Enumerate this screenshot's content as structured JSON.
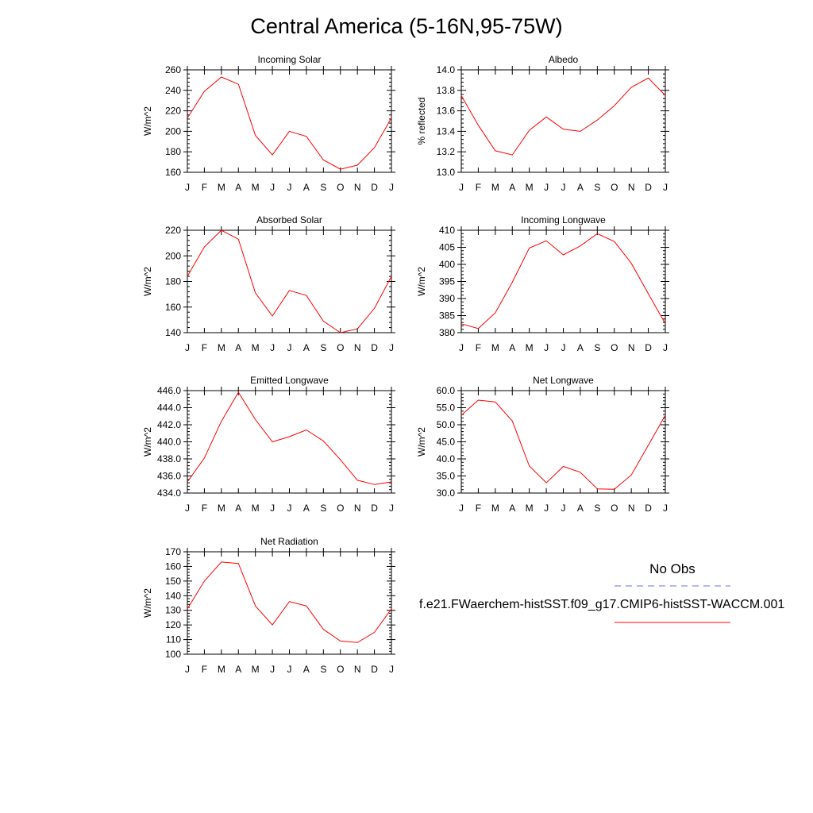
{
  "title": "Central America (5-16N,95-75W)",
  "months": [
    "J",
    "F",
    "M",
    "A",
    "M",
    "J",
    "J",
    "A",
    "S",
    "O",
    "N",
    "D",
    "J"
  ],
  "colors": {
    "model": "#ff0000",
    "obs": "#6b6bff",
    "axis": "#000000"
  },
  "legend": {
    "obs_label": "No Obs",
    "model_label": "f.e21.FWaerchem-histSST.f09_g17.CMIP6-histSST-WACCM.001"
  },
  "chart_data": [
    {
      "type": "line",
      "title": "Incoming Solar",
      "ylabel": "W/m^2",
      "ylim": [
        160,
        260
      ],
      "yticks": [
        "160",
        "180",
        "200",
        "220",
        "240",
        "260"
      ],
      "x": [
        "J",
        "F",
        "M",
        "A",
        "M",
        "J",
        "J",
        "A",
        "S",
        "O",
        "N",
        "D",
        "J"
      ],
      "series": [
        {
          "values": [
            213,
            239,
            253,
            246,
            196,
            177,
            200,
            195,
            172,
            163,
            167,
            184,
            213
          ]
        }
      ]
    },
    {
      "type": "line",
      "title": "Albedo",
      "ylabel": "% reflected",
      "ylim": [
        13.0,
        14.0
      ],
      "yticks": [
        "13.0",
        "13.2",
        "13.4",
        "13.6",
        "13.8",
        "14.0"
      ],
      "x": [
        "J",
        "F",
        "M",
        "A",
        "M",
        "J",
        "J",
        "A",
        "S",
        "O",
        "N",
        "D",
        "J"
      ],
      "series": [
        {
          "values": [
            13.75,
            13.46,
            13.21,
            13.17,
            13.41,
            13.54,
            13.42,
            13.4,
            13.51,
            13.65,
            13.83,
            13.92,
            13.75
          ]
        }
      ]
    },
    {
      "type": "line",
      "title": "Absorbed Solar",
      "ylabel": "W/m^2",
      "ylim": [
        140,
        220
      ],
      "yticks": [
        "140",
        "160",
        "180",
        "200",
        "220"
      ],
      "x": [
        "J",
        "F",
        "M",
        "A",
        "M",
        "J",
        "J",
        "A",
        "S",
        "O",
        "N",
        "D",
        "J"
      ],
      "series": [
        {
          "values": [
            184,
            207,
            220,
            213,
            171,
            153,
            173,
            169,
            149,
            140,
            143,
            159,
            184
          ]
        }
      ]
    },
    {
      "type": "line",
      "title": "Incoming Longwave",
      "ylabel": "W/m^2",
      "ylim": [
        380,
        410
      ],
      "yticks": [
        "380",
        "385",
        "390",
        "395",
        "400",
        "405",
        "410"
      ],
      "x": [
        "J",
        "F",
        "M",
        "A",
        "M",
        "J",
        "J",
        "A",
        "S",
        "O",
        "N",
        "D",
        "J"
      ],
      "series": [
        {
          "values": [
            382.6,
            381.2,
            385.8,
            394.8,
            404.8,
            406.9,
            402.8,
            405.4,
            409.0,
            406.7,
            400.3,
            391.4,
            382.6
          ]
        }
      ]
    },
    {
      "type": "line",
      "title": "Emitted Longwave",
      "ylabel": "W/m^2",
      "ylim": [
        434.0,
        446.0
      ],
      "yticks": [
        "434.0",
        "436.0",
        "438.0",
        "440.0",
        "442.0",
        "444.0",
        "446.0"
      ],
      "x": [
        "J",
        "F",
        "M",
        "A",
        "M",
        "J",
        "J",
        "A",
        "S",
        "O",
        "N",
        "D",
        "J"
      ],
      "series": [
        {
          "values": [
            435.3,
            438.1,
            442.4,
            445.8,
            442.6,
            440.0,
            440.6,
            441.4,
            440.1,
            437.9,
            435.5,
            435.0,
            435.3
          ]
        }
      ]
    },
    {
      "type": "line",
      "title": "Net Longwave",
      "ylabel": "W/m^2",
      "ylim": [
        30.0,
        60.0
      ],
      "yticks": [
        "30.0",
        "35.0",
        "40.0",
        "45.0",
        "50.0",
        "55.0",
        "60.0"
      ],
      "x": [
        "J",
        "F",
        "M",
        "A",
        "M",
        "J",
        "J",
        "A",
        "S",
        "O",
        "N",
        "D",
        "J"
      ],
      "series": [
        {
          "values": [
            52.8,
            57.2,
            56.7,
            51.1,
            37.9,
            33.0,
            37.8,
            36.1,
            31.2,
            31.1,
            35.3,
            44.0,
            52.8
          ]
        }
      ]
    },
    {
      "type": "line",
      "title": "Net Radiation",
      "ylabel": "W/m^2",
      "ylim": [
        100,
        170
      ],
      "yticks": [
        "100",
        "110",
        "120",
        "130",
        "140",
        "150",
        "160",
        "170"
      ],
      "x": [
        "J",
        "F",
        "M",
        "A",
        "M",
        "J",
        "J",
        "A",
        "S",
        "O",
        "N",
        "D",
        "J"
      ],
      "series": [
        {
          "values": [
            131,
            150,
            163,
            162,
            133,
            120,
            136,
            133,
            117,
            109,
            108,
            115,
            131
          ]
        }
      ]
    }
  ]
}
